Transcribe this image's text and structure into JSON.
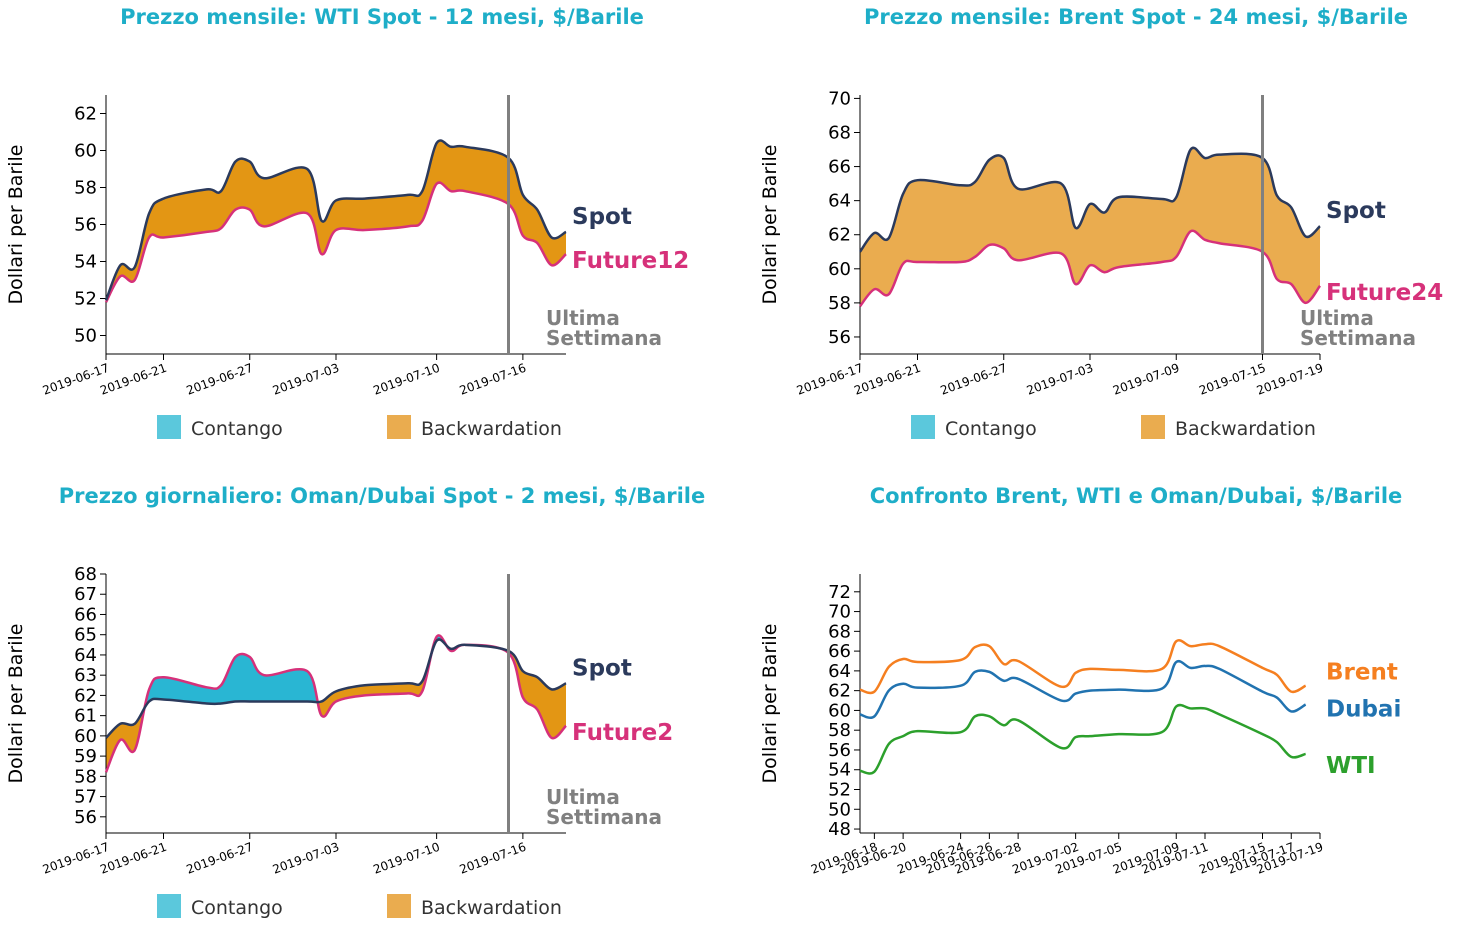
{
  "colors": {
    "title": "#1eaec8",
    "spot_line": "#2b3a5c",
    "future_line": "#d6317a",
    "backwardation": "#e39614",
    "backwardation_light": "#eaac4f",
    "contango": "#29b6d3",
    "contango_legend": "#5bc8dc",
    "ultima": "#808080",
    "brent": "#f57f20",
    "dubai": "#2173b0",
    "wti": "#2ca02c"
  },
  "legend": {
    "contango": "Contango",
    "backwardation": "Backwardation"
  },
  "ultima_settimana": {
    "line1": "Ultima",
    "line2": "Settimana"
  },
  "chart_data": [
    {
      "id": "wti",
      "type": "area",
      "title": "Prezzo mensile: WTI Spot - 12 mesi, $/Barile",
      "ylabel": "Dollari per Barile",
      "ylim": [
        49,
        63
      ],
      "yticks": [
        50,
        52,
        54,
        56,
        58,
        60,
        62
      ],
      "x_dates": [
        "2019-06-17",
        "2019-06-18",
        "2019-06-19",
        "2019-06-20",
        "2019-06-21",
        "2019-06-24",
        "2019-06-25",
        "2019-06-26",
        "2019-06-27",
        "2019-06-28",
        "2019-07-01",
        "2019-07-02",
        "2019-07-03",
        "2019-07-05",
        "2019-07-08",
        "2019-07-09",
        "2019-07-10",
        "2019-07-11",
        "2019-07-12",
        "2019-07-15",
        "2019-07-16",
        "2019-07-17",
        "2019-07-18",
        "2019-07-19"
      ],
      "xtick_labels": [
        "2019-06-17",
        "2019-06-21",
        "2019-06-27",
        "2019-07-03",
        "2019-07-10",
        "2019-07-16"
      ],
      "series": [
        {
          "name": "Spot",
          "values": [
            51.9,
            53.8,
            53.7,
            56.6,
            57.4,
            57.9,
            57.8,
            59.4,
            59.4,
            58.5,
            59.0,
            56.2,
            57.3,
            57.4,
            57.6,
            57.8,
            60.4,
            60.2,
            60.2,
            59.6,
            57.6,
            56.8,
            55.3,
            55.6
          ]
        },
        {
          "name": "Future12",
          "values": [
            51.8,
            53.2,
            53.0,
            55.3,
            55.3,
            55.6,
            55.8,
            56.8,
            56.8,
            55.9,
            56.6,
            54.4,
            55.7,
            55.7,
            55.9,
            56.2,
            58.2,
            57.8,
            57.8,
            57.1,
            55.4,
            55.0,
            53.8,
            54.4
          ]
        }
      ],
      "ultima_settimana_date": "2019-07-15",
      "spot_label": "Spot",
      "future_label": "Future12"
    },
    {
      "id": "brent",
      "type": "area",
      "title": "Prezzo mensile: Brent Spot - 24 mesi, $/Barile",
      "ylabel": "Dollari per Barile",
      "ylim": [
        55,
        70.2
      ],
      "yticks": [
        56,
        58,
        60,
        62,
        64,
        66,
        68,
        70
      ],
      "x_dates": [
        "2019-06-17",
        "2019-06-18",
        "2019-06-19",
        "2019-06-20",
        "2019-06-21",
        "2019-06-24",
        "2019-06-25",
        "2019-06-26",
        "2019-06-27",
        "2019-06-28",
        "2019-07-01",
        "2019-07-02",
        "2019-07-03",
        "2019-07-04",
        "2019-07-05",
        "2019-07-08",
        "2019-07-09",
        "2019-07-10",
        "2019-07-11",
        "2019-07-12",
        "2019-07-15",
        "2019-07-16",
        "2019-07-17",
        "2019-07-18",
        "2019-07-19"
      ],
      "xtick_labels": [
        "2019-06-17",
        "2019-06-21",
        "2019-06-27",
        "2019-07-03",
        "2019-07-09",
        "2019-07-15",
        "2019-07-19"
      ],
      "series": [
        {
          "name": "Spot",
          "values": [
            61.0,
            62.1,
            61.8,
            64.4,
            65.2,
            64.9,
            65.1,
            66.4,
            66.5,
            64.7,
            65.0,
            62.4,
            63.8,
            63.3,
            64.2,
            64.1,
            64.2,
            67.0,
            66.5,
            66.7,
            66.5,
            64.3,
            63.6,
            61.9,
            62.5
          ]
        },
        {
          "name": "Future24",
          "values": [
            57.8,
            58.8,
            58.5,
            60.3,
            60.4,
            60.4,
            60.7,
            61.4,
            61.2,
            60.5,
            60.9,
            59.1,
            60.2,
            59.8,
            60.1,
            60.4,
            60.7,
            62.2,
            61.7,
            61.5,
            61.0,
            59.4,
            59.1,
            58.0,
            59.0
          ]
        }
      ],
      "ultima_settimana_date": "2019-07-15",
      "spot_label": "Spot",
      "future_label": "Future24"
    },
    {
      "id": "oman",
      "type": "area",
      "title": "Prezzo giornaliero: Oman/Dubai Spot - 2 mesi, $/Barile",
      "ylabel": "Dollari per Barile",
      "ylim": [
        55.2,
        68
      ],
      "yticks": [
        56,
        57,
        58,
        59,
        60,
        61,
        62,
        63,
        64,
        65,
        66,
        67,
        68
      ],
      "x_dates": [
        "2019-06-17",
        "2019-06-18",
        "2019-06-19",
        "2019-06-20",
        "2019-06-21",
        "2019-06-24",
        "2019-06-25",
        "2019-06-26",
        "2019-06-27",
        "2019-06-28",
        "2019-07-01",
        "2019-07-02",
        "2019-07-03",
        "2019-07-05",
        "2019-07-08",
        "2019-07-09",
        "2019-07-10",
        "2019-07-11",
        "2019-07-12",
        "2019-07-15",
        "2019-07-16",
        "2019-07-17",
        "2019-07-18",
        "2019-07-19"
      ],
      "xtick_labels": [
        "2019-06-17",
        "2019-06-21",
        "2019-06-27",
        "2019-07-03",
        "2019-07-10",
        "2019-07-16"
      ],
      "series": [
        {
          "name": "Spot",
          "values": [
            59.9,
            60.6,
            60.6,
            61.7,
            61.8,
            61.6,
            61.6,
            61.7,
            61.7,
            61.7,
            61.7,
            61.7,
            62.2,
            62.5,
            62.6,
            62.7,
            64.7,
            64.3,
            64.5,
            64.2,
            63.2,
            62.9,
            62.3,
            62.6
          ]
        },
        {
          "name": "Future2",
          "values": [
            58.2,
            59.8,
            59.3,
            62.3,
            62.9,
            62.4,
            62.5,
            63.9,
            63.9,
            63.0,
            63.2,
            61.0,
            61.7,
            62.0,
            62.1,
            62.2,
            64.9,
            64.2,
            64.5,
            64.1,
            61.9,
            61.3,
            59.9,
            60.5
          ]
        }
      ],
      "ultima_settimana_date": "2019-07-15",
      "spot_label": "Spot",
      "future_label": "Future2"
    },
    {
      "id": "confronto",
      "type": "line",
      "title": "Confronto Brent, WTI e Oman/Dubai, $/Barile",
      "ylabel": "Dollari per Barile",
      "ylim": [
        47.6,
        73.8
      ],
      "yticks": [
        48,
        50,
        52,
        54,
        56,
        58,
        60,
        62,
        64,
        66,
        68,
        70,
        72
      ],
      "x_dates": [
        "2019-06-17",
        "2019-06-18",
        "2019-06-19",
        "2019-06-20",
        "2019-06-21",
        "2019-06-24",
        "2019-06-25",
        "2019-06-26",
        "2019-06-27",
        "2019-06-28",
        "2019-07-01",
        "2019-07-02",
        "2019-07-03",
        "2019-07-05",
        "2019-07-08",
        "2019-07-09",
        "2019-07-10",
        "2019-07-11",
        "2019-07-12",
        "2019-07-15",
        "2019-07-16",
        "2019-07-17",
        "2019-07-18"
      ],
      "xtick_labels": [
        "2019-06-18",
        "2019-06-20",
        "2019-06-24",
        "2019-06-26",
        "2019-06-28",
        "2019-07-02",
        "2019-07-05",
        "2019-07-09",
        "2019-07-11",
        "2019-07-15",
        "2019-07-17",
        "2019-07-19"
      ],
      "series": [
        {
          "name": "Brent",
          "values": [
            62.1,
            61.9,
            64.4,
            65.2,
            64.9,
            65.1,
            66.4,
            66.5,
            64.7,
            65.0,
            62.4,
            63.8,
            64.2,
            64.1,
            64.2,
            67.0,
            66.5,
            66.7,
            66.5,
            64.3,
            63.6,
            61.9,
            62.5
          ]
        },
        {
          "name": "Dubai",
          "values": [
            59.6,
            59.4,
            62.0,
            62.7,
            62.3,
            62.5,
            63.9,
            63.9,
            63.0,
            63.2,
            61.0,
            61.7,
            62.0,
            62.1,
            62.2,
            64.9,
            64.3,
            64.5,
            64.2,
            61.9,
            61.3,
            59.9,
            60.6
          ]
        },
        {
          "name": "WTI",
          "values": [
            53.9,
            53.8,
            56.6,
            57.4,
            57.9,
            57.8,
            59.4,
            59.4,
            58.5,
            59.0,
            56.2,
            57.3,
            57.4,
            57.6,
            57.8,
            60.4,
            60.2,
            60.2,
            59.6,
            57.6,
            56.8,
            55.3,
            55.6
          ]
        }
      ]
    }
  ]
}
